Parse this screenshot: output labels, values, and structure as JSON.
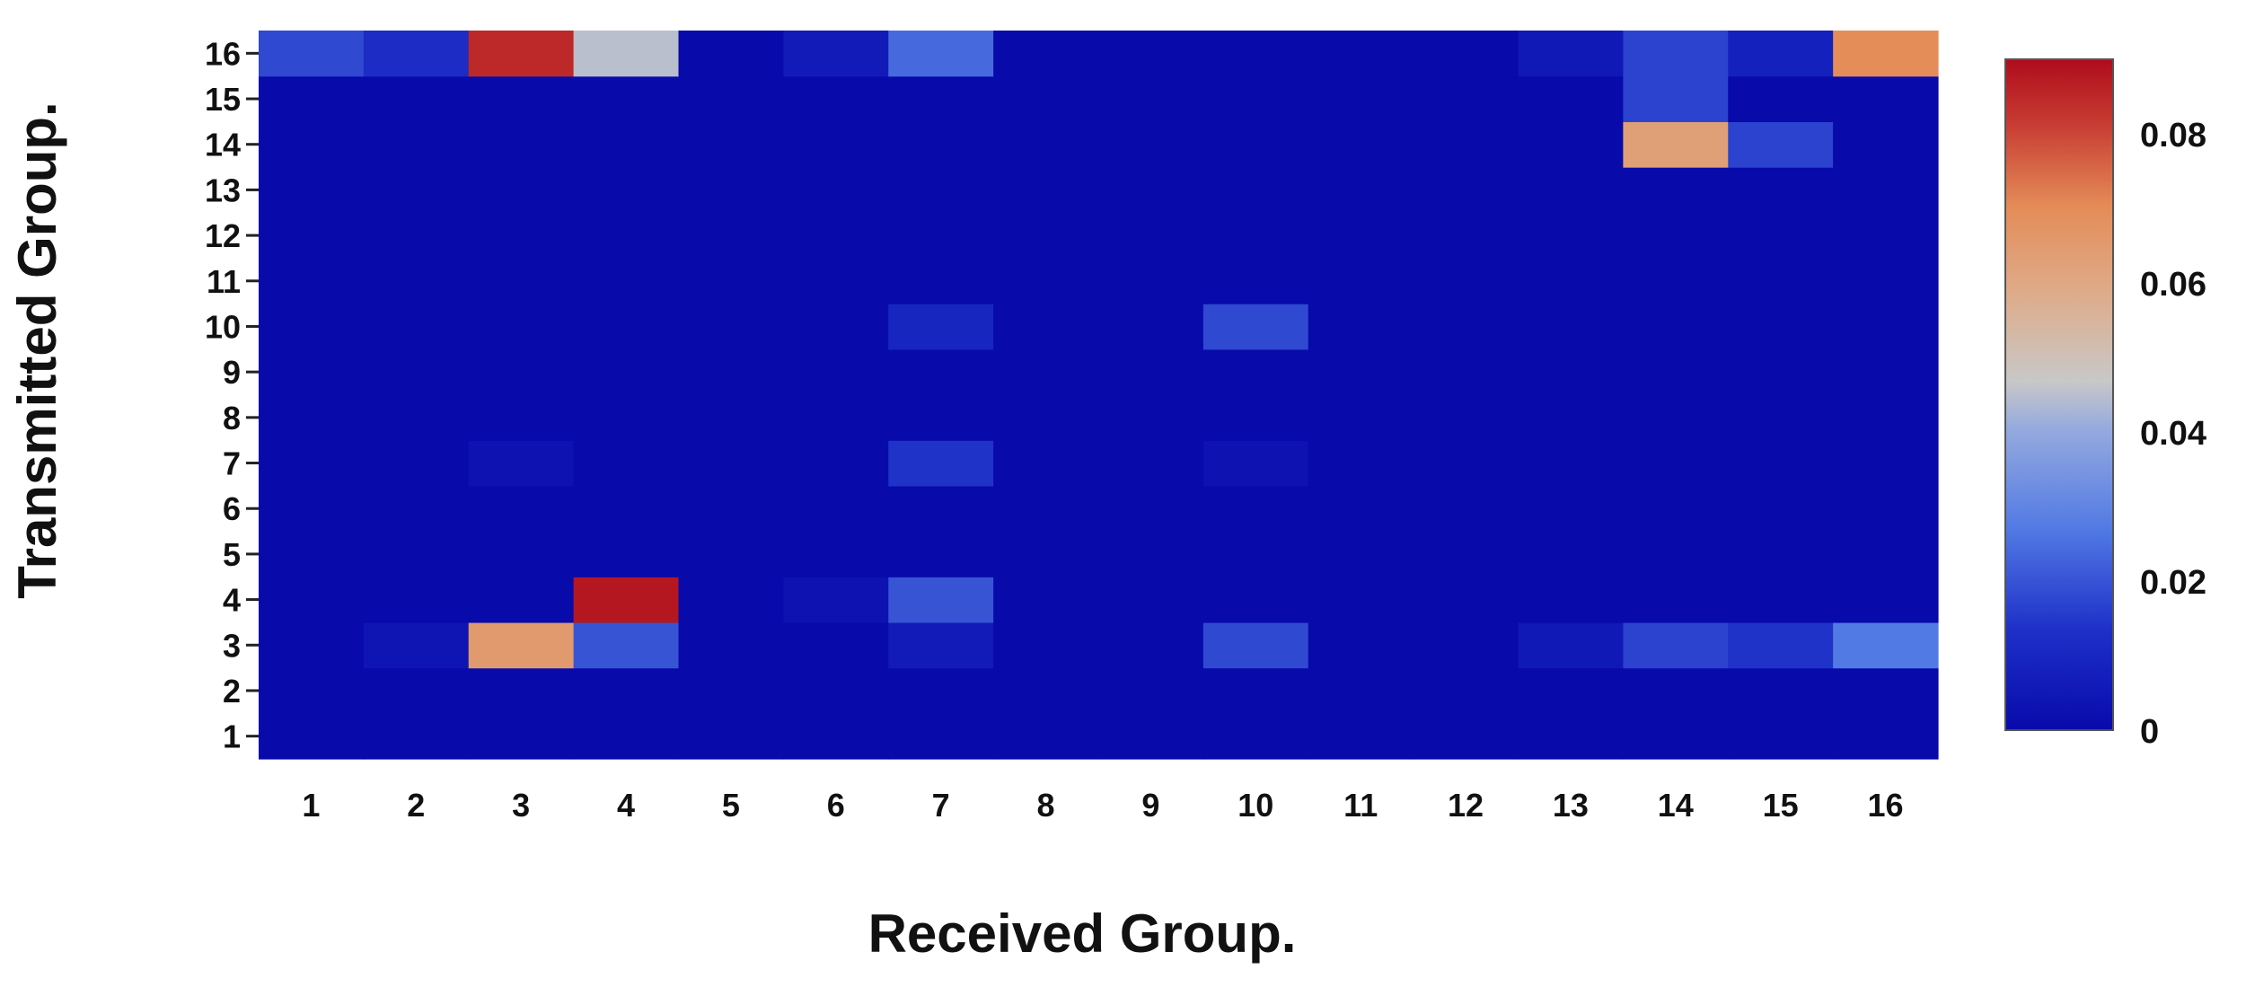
{
  "chart_data": {
    "type": "heatmap",
    "title": "",
    "xlabel": "Received Group.",
    "ylabel": "Transmitted Group.",
    "x_categories": [
      "1",
      "2",
      "3",
      "4",
      "5",
      "6",
      "7",
      "8",
      "9",
      "10",
      "11",
      "12",
      "13",
      "14",
      "15",
      "16"
    ],
    "y_categories": [
      "1",
      "2",
      "3",
      "4",
      "5",
      "6",
      "7",
      "8",
      "9",
      "10",
      "11",
      "12",
      "13",
      "14",
      "15",
      "16"
    ],
    "colorbar": {
      "min": 0,
      "max": 0.09,
      "ticks": [
        0,
        0.02,
        0.04,
        0.06,
        0.08
      ],
      "tick_labels": [
        "0",
        "0.02",
        "0.04",
        "0.06",
        "0.08"
      ],
      "colormap": "coolwarm",
      "placement": "right"
    },
    "grid": false,
    "values": [
      [
        0,
        0,
        0,
        0,
        0,
        0,
        0,
        0,
        0,
        0,
        0,
        0,
        0,
        0,
        0,
        0
      ],
      [
        0,
        0,
        0,
        0,
        0,
        0,
        0,
        0,
        0,
        0,
        0,
        0,
        0,
        0,
        0,
        0
      ],
      [
        0,
        0.004,
        0.065,
        0.02,
        0,
        0,
        0.006,
        0,
        0,
        0.018,
        0,
        0,
        0.005,
        0.017,
        0.014,
        0.027
      ],
      [
        0,
        0,
        0,
        0.088,
        0,
        0.003,
        0.02,
        0,
        0,
        0,
        0,
        0,
        0,
        0,
        0,
        0
      ],
      [
        0,
        0,
        0,
        0,
        0,
        0,
        0,
        0,
        0,
        0,
        0,
        0,
        0,
        0,
        0,
        0
      ],
      [
        0,
        0,
        0,
        0,
        0,
        0,
        0,
        0,
        0,
        0,
        0,
        0,
        0,
        0,
        0,
        0
      ],
      [
        0,
        0,
        0.003,
        0,
        0,
        0,
        0.014,
        0,
        0,
        0.003,
        0,
        0,
        0,
        0,
        0,
        0
      ],
      [
        0,
        0,
        0,
        0,
        0,
        0,
        0,
        0,
        0,
        0,
        0,
        0,
        0,
        0,
        0,
        0
      ],
      [
        0,
        0,
        0,
        0,
        0,
        0,
        0,
        0,
        0,
        0,
        0,
        0,
        0,
        0,
        0,
        0
      ],
      [
        0,
        0,
        0,
        0,
        0,
        0,
        0.01,
        0,
        0,
        0.018,
        0,
        0,
        0,
        0,
        0,
        0
      ],
      [
        0,
        0,
        0,
        0,
        0,
        0,
        0,
        0,
        0,
        0,
        0,
        0,
        0,
        0,
        0,
        0
      ],
      [
        0,
        0,
        0,
        0,
        0,
        0,
        0,
        0,
        0,
        0,
        0,
        0,
        0,
        0,
        0,
        0
      ],
      [
        0,
        0,
        0,
        0,
        0,
        0,
        0,
        0,
        0,
        0,
        0,
        0,
        0,
        0,
        0,
        0
      ],
      [
        0,
        0,
        0,
        0,
        0,
        0,
        0,
        0,
        0,
        0,
        0,
        0,
        0,
        0.063,
        0.017,
        0
      ],
      [
        0,
        0,
        0,
        0,
        0,
        0,
        0,
        0,
        0,
        0,
        0,
        0,
        0,
        0.017,
        0,
        0
      ],
      [
        0.018,
        0.012,
        0.085,
        0.045,
        0,
        0.006,
        0.024,
        0,
        0,
        0,
        0,
        0,
        0.005,
        0.017,
        0.008,
        0.07
      ]
    ]
  }
}
